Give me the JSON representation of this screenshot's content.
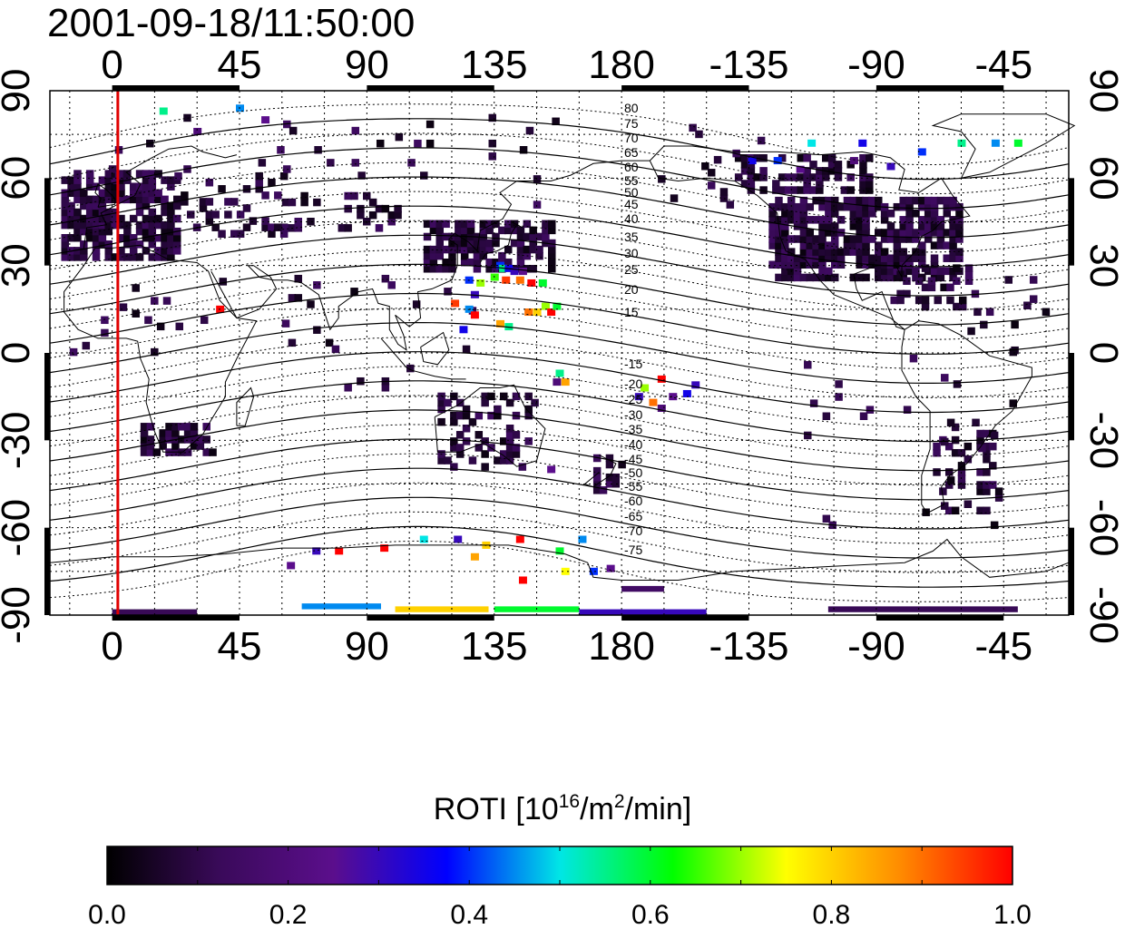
{
  "timestamp": "2001-09-18/11:50:00",
  "colorbar": {
    "title_prefix": "ROTI  [10",
    "title_exp1": "16",
    "title_mid": "/m",
    "title_exp2": "2",
    "title_suffix": "/min]",
    "min": 0.0,
    "max": 1.0,
    "ticks": [
      "0.0",
      "0.2",
      "0.4",
      "0.6",
      "0.8",
      "1.0"
    ],
    "colors": [
      "#000000",
      "#3a0a5a",
      "#5b0e8c",
      "#0000ff",
      "#00e6e6",
      "#00ff00",
      "#ffff00",
      "#ff8c00",
      "#ff0000"
    ]
  },
  "map_data": {
    "type": "heatmap",
    "x_ticks_top": [
      "0",
      "45",
      "90",
      "135",
      "180",
      "-135",
      "-90",
      "-45"
    ],
    "x_ticks_bottom": [
      "0",
      "45",
      "90",
      "135",
      "180",
      "-135",
      "-90",
      "-45"
    ],
    "y_ticks_left": [
      "90",
      "60",
      "30",
      "0",
      "-30",
      "-60",
      "-90"
    ],
    "y_ticks_right": [
      "90",
      "60",
      "30",
      "0",
      "-30",
      "-60",
      "-90"
    ],
    "lon_range": [
      -22,
      338
    ],
    "lat_range": [
      -90,
      90
    ],
    "marker_longitude": 2,
    "contour_labels_north": [
      "80",
      "75",
      "70",
      "65",
      "60",
      "55",
      "50",
      "45",
      "40",
      "35",
      "30",
      "25",
      "20",
      "15"
    ],
    "contour_labels_south": [
      "-15",
      "-20",
      "-25",
      "-30",
      "-35",
      "-40",
      "-45",
      "-50",
      "-55",
      "-60",
      "-65",
      "-70",
      "-75"
    ],
    "roti_cells": [
      {
        "lon": 137,
        "lat": 30,
        "v": 0.4
      },
      {
        "lon": 138,
        "lat": 29,
        "v": 0.55
      },
      {
        "lon": 140,
        "lat": 29,
        "v": 0.35
      },
      {
        "lon": 142,
        "lat": 28,
        "v": 0.3
      },
      {
        "lon": 145,
        "lat": 28,
        "v": 0.25
      },
      {
        "lon": 135,
        "lat": 26,
        "v": 0.65
      },
      {
        "lon": 139,
        "lat": 25,
        "v": 0.95
      },
      {
        "lon": 144,
        "lat": 25,
        "v": 0.9
      },
      {
        "lon": 148,
        "lat": 24,
        "v": 1.0
      },
      {
        "lon": 152,
        "lat": 24,
        "v": 0.6
      },
      {
        "lon": 130,
        "lat": 24,
        "v": 0.7
      },
      {
        "lon": 126,
        "lat": 25,
        "v": 0.4
      },
      {
        "lon": 128,
        "lat": 20,
        "v": 0.3
      },
      {
        "lon": 121,
        "lat": 17,
        "v": 0.95
      },
      {
        "lon": 126,
        "lat": 15,
        "v": 0.45
      },
      {
        "lon": 128,
        "lat": 13,
        "v": 1.0
      },
      {
        "lon": 147,
        "lat": 14,
        "v": 0.9
      },
      {
        "lon": 150,
        "lat": 14,
        "v": 0.8
      },
      {
        "lon": 153,
        "lat": 16,
        "v": 0.7
      },
      {
        "lon": 155,
        "lat": 14,
        "v": 1.0
      },
      {
        "lon": 157,
        "lat": 16,
        "v": 0.6
      },
      {
        "lon": 137,
        "lat": 10,
        "v": 0.85
      },
      {
        "lon": 140,
        "lat": 9,
        "v": 0.55
      },
      {
        "lon": 124,
        "lat": 8,
        "v": 0.35
      },
      {
        "lon": 38,
        "lat": 15,
        "v": 1.0
      },
      {
        "lon": 194,
        "lat": -9,
        "v": 1.0
      },
      {
        "lon": 188,
        "lat": -12,
        "v": 0.7
      },
      {
        "lon": 186,
        "lat": -15,
        "v": 0.3
      },
      {
        "lon": 191,
        "lat": -17,
        "v": 0.9
      },
      {
        "lon": 198,
        "lat": -15,
        "v": 0.25
      },
      {
        "lon": 194,
        "lat": -19,
        "v": 0.2
      },
      {
        "lon": 203,
        "lat": -14,
        "v": 0.35
      },
      {
        "lon": 206,
        "lat": -11,
        "v": 0.3
      },
      {
        "lon": 158,
        "lat": -7,
        "v": 0.55
      },
      {
        "lon": 160,
        "lat": -10,
        "v": 0.85
      },
      {
        "lon": 155,
        "lat": -40,
        "v": 0.25
      },
      {
        "lon": 157,
        "lat": -10,
        "v": 0.2
      },
      {
        "lon": 18,
        "lat": 83,
        "v": 0.55
      },
      {
        "lon": 45,
        "lat": 84,
        "v": 0.45
      },
      {
        "lon": 54,
        "lat": 80,
        "v": 0.25
      },
      {
        "lon": 30,
        "lat": 76,
        "v": 0.2
      },
      {
        "lon": 247,
        "lat": 72,
        "v": 0.5
      },
      {
        "lon": 265,
        "lat": 72,
        "v": 0.35
      },
      {
        "lon": 286,
        "lat": 69,
        "v": 0.4
      },
      {
        "lon": 300,
        "lat": 72,
        "v": 0.55
      },
      {
        "lon": 312,
        "lat": 72,
        "v": 0.45
      },
      {
        "lon": 320,
        "lat": 72,
        "v": 0.6
      },
      {
        "lon": 226,
        "lat": 66,
        "v": 0.35
      },
      {
        "lon": 235,
        "lat": 66,
        "v": 0.4
      },
      {
        "lon": 243,
        "lat": 63,
        "v": 0.25
      },
      {
        "lon": 262,
        "lat": 66,
        "v": 0.2
      },
      {
        "lon": 275,
        "lat": 64,
        "v": 0.3
      },
      {
        "lon": 80,
        "lat": -68,
        "v": 1.0
      },
      {
        "lon": 72,
        "lat": -68,
        "v": 0.3
      },
      {
        "lon": 96,
        "lat": -67,
        "v": 1.0
      },
      {
        "lon": 110,
        "lat": -64,
        "v": 0.5
      },
      {
        "lon": 122,
        "lat": -64,
        "v": 0.3
      },
      {
        "lon": 132,
        "lat": -66,
        "v": 0.8
      },
      {
        "lon": 144,
        "lat": -64,
        "v": 1.0
      },
      {
        "lon": 158,
        "lat": -68,
        "v": 0.6
      },
      {
        "lon": 128,
        "lat": -70,
        "v": 0.85
      },
      {
        "lon": 145,
        "lat": -78,
        "v": 1.0
      },
      {
        "lon": 160,
        "lat": -75,
        "v": 0.75
      },
      {
        "lon": 170,
        "lat": -75,
        "v": 0.4
      },
      {
        "lon": 176,
        "lat": -74,
        "v": 0.25
      },
      {
        "lon": 63,
        "lat": -73,
        "v": 0.25
      },
      {
        "lon": 166,
        "lat": -64,
        "v": 0.45
      }
    ],
    "roti_bands": [
      {
        "lon1": 67,
        "lon2": 95,
        "lat1": -88,
        "lat2": -86,
        "v": 0.45
      },
      {
        "lon1": 100,
        "lon2": 133,
        "lat1": -89,
        "lat2": -87,
        "v": 0.8
      },
      {
        "lon1": 135,
        "lon2": 165,
        "lat1": -89,
        "lat2": -87,
        "v": 0.6
      },
      {
        "lon1": 165,
        "lon2": 210,
        "lat1": -90,
        "lat2": -88,
        "v": 0.3
      },
      {
        "lon1": 0,
        "lon2": 30,
        "lat1": -90,
        "lat2": -88,
        "v": 0.12
      },
      {
        "lon1": 253,
        "lon2": 320,
        "lat1": -89,
        "lat2": -87,
        "v": 0.12
      },
      {
        "lon1": 180,
        "lon2": 195,
        "lat1": -82,
        "lat2": -80,
        "v": 0.15
      }
    ]
  }
}
